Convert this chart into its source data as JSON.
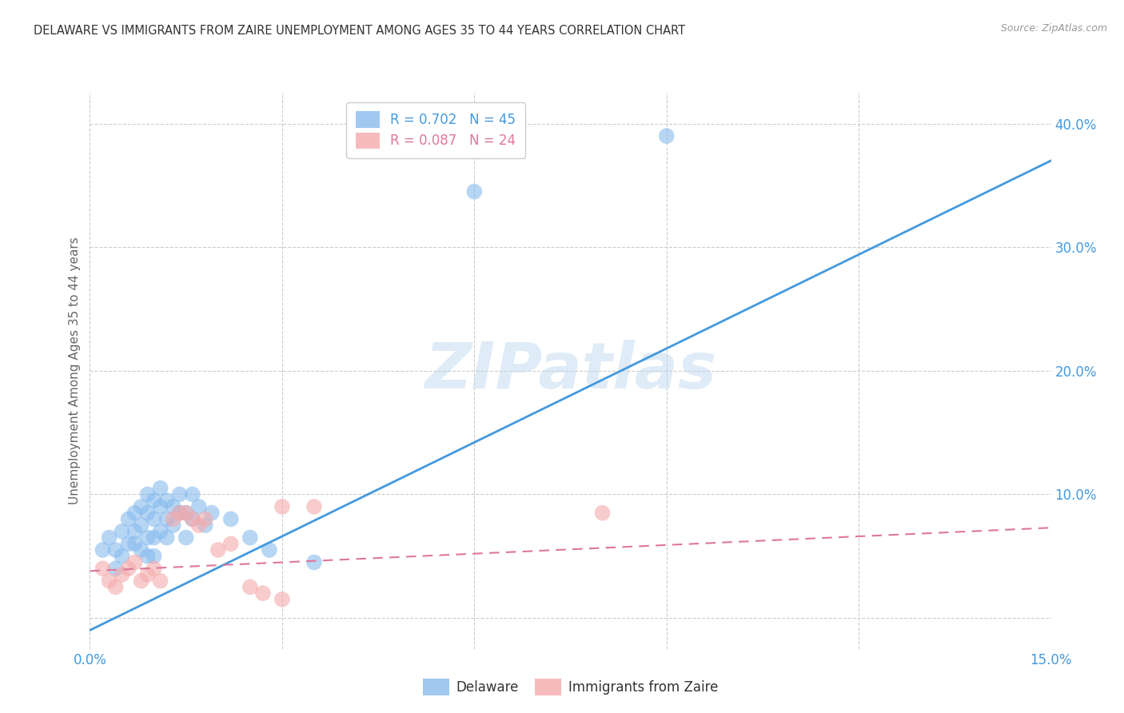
{
  "title": "DELAWARE VS IMMIGRANTS FROM ZAIRE UNEMPLOYMENT AMONG AGES 35 TO 44 YEARS CORRELATION CHART",
  "source": "Source: ZipAtlas.com",
  "ylabel": "Unemployment Among Ages 35 to 44 years",
  "xlim": [
    0.0,
    0.15
  ],
  "ylim": [
    -0.025,
    0.425
  ],
  "xticks": [
    0.0,
    0.03,
    0.06,
    0.09,
    0.12,
    0.15
  ],
  "xticklabels": [
    "0.0%",
    "",
    "",
    "",
    "",
    "15.0%"
  ],
  "yticks_right": [
    0.0,
    0.1,
    0.2,
    0.3,
    0.4
  ],
  "yticklabels_right": [
    "",
    "10.0%",
    "20.0%",
    "30.0%",
    "40.0%"
  ],
  "watermark": "ZIPatlas",
  "legend_entry1": "R = 0.702   N = 45",
  "legend_entry2": "R = 0.087   N = 24",
  "legend_label1": "Delaware",
  "legend_label2": "Immigrants from Zaire",
  "blue_color": "#88bbee",
  "pink_color": "#f4aaaa",
  "line_blue": "#4499dd",
  "line_pink": "#dd7799",
  "title_color": "#333333",
  "axis_color": "#4499dd",
  "blue_scatter": [
    [
      0.002,
      0.055
    ],
    [
      0.003,
      0.065
    ],
    [
      0.004,
      0.055
    ],
    [
      0.004,
      0.04
    ],
    [
      0.005,
      0.07
    ],
    [
      0.005,
      0.05
    ],
    [
      0.006,
      0.08
    ],
    [
      0.006,
      0.06
    ],
    [
      0.007,
      0.085
    ],
    [
      0.007,
      0.07
    ],
    [
      0.007,
      0.06
    ],
    [
      0.008,
      0.09
    ],
    [
      0.008,
      0.075
    ],
    [
      0.008,
      0.055
    ],
    [
      0.009,
      0.1
    ],
    [
      0.009,
      0.085
    ],
    [
      0.009,
      0.065
    ],
    [
      0.009,
      0.05
    ],
    [
      0.01,
      0.095
    ],
    [
      0.01,
      0.08
    ],
    [
      0.01,
      0.065
    ],
    [
      0.01,
      0.05
    ],
    [
      0.011,
      0.105
    ],
    [
      0.011,
      0.09
    ],
    [
      0.011,
      0.07
    ],
    [
      0.012,
      0.095
    ],
    [
      0.012,
      0.08
    ],
    [
      0.012,
      0.065
    ],
    [
      0.013,
      0.09
    ],
    [
      0.013,
      0.075
    ],
    [
      0.014,
      0.1
    ],
    [
      0.014,
      0.085
    ],
    [
      0.015,
      0.085
    ],
    [
      0.015,
      0.065
    ],
    [
      0.016,
      0.1
    ],
    [
      0.016,
      0.08
    ],
    [
      0.017,
      0.09
    ],
    [
      0.018,
      0.075
    ],
    [
      0.019,
      0.085
    ],
    [
      0.022,
      0.08
    ],
    [
      0.025,
      0.065
    ],
    [
      0.028,
      0.055
    ],
    [
      0.035,
      0.045
    ],
    [
      0.06,
      0.345
    ],
    [
      0.09,
      0.39
    ]
  ],
  "pink_scatter": [
    [
      0.002,
      0.04
    ],
    [
      0.003,
      0.03
    ],
    [
      0.004,
      0.025
    ],
    [
      0.005,
      0.035
    ],
    [
      0.006,
      0.04
    ],
    [
      0.007,
      0.045
    ],
    [
      0.008,
      0.03
    ],
    [
      0.009,
      0.035
    ],
    [
      0.01,
      0.04
    ],
    [
      0.011,
      0.03
    ],
    [
      0.013,
      0.08
    ],
    [
      0.014,
      0.085
    ],
    [
      0.015,
      0.085
    ],
    [
      0.016,
      0.08
    ],
    [
      0.017,
      0.075
    ],
    [
      0.018,
      0.08
    ],
    [
      0.02,
      0.055
    ],
    [
      0.022,
      0.06
    ],
    [
      0.025,
      0.025
    ],
    [
      0.027,
      0.02
    ],
    [
      0.03,
      0.015
    ],
    [
      0.03,
      0.09
    ],
    [
      0.035,
      0.09
    ],
    [
      0.08,
      0.085
    ]
  ],
  "blue_line_x": [
    -0.002,
    0.15
  ],
  "blue_line_y": [
    -0.015,
    0.37
  ],
  "pink_line_x": [
    0.0,
    0.15
  ],
  "pink_line_y": [
    0.038,
    0.073
  ],
  "grid_color": "#cccccc",
  "background_color": "#ffffff"
}
